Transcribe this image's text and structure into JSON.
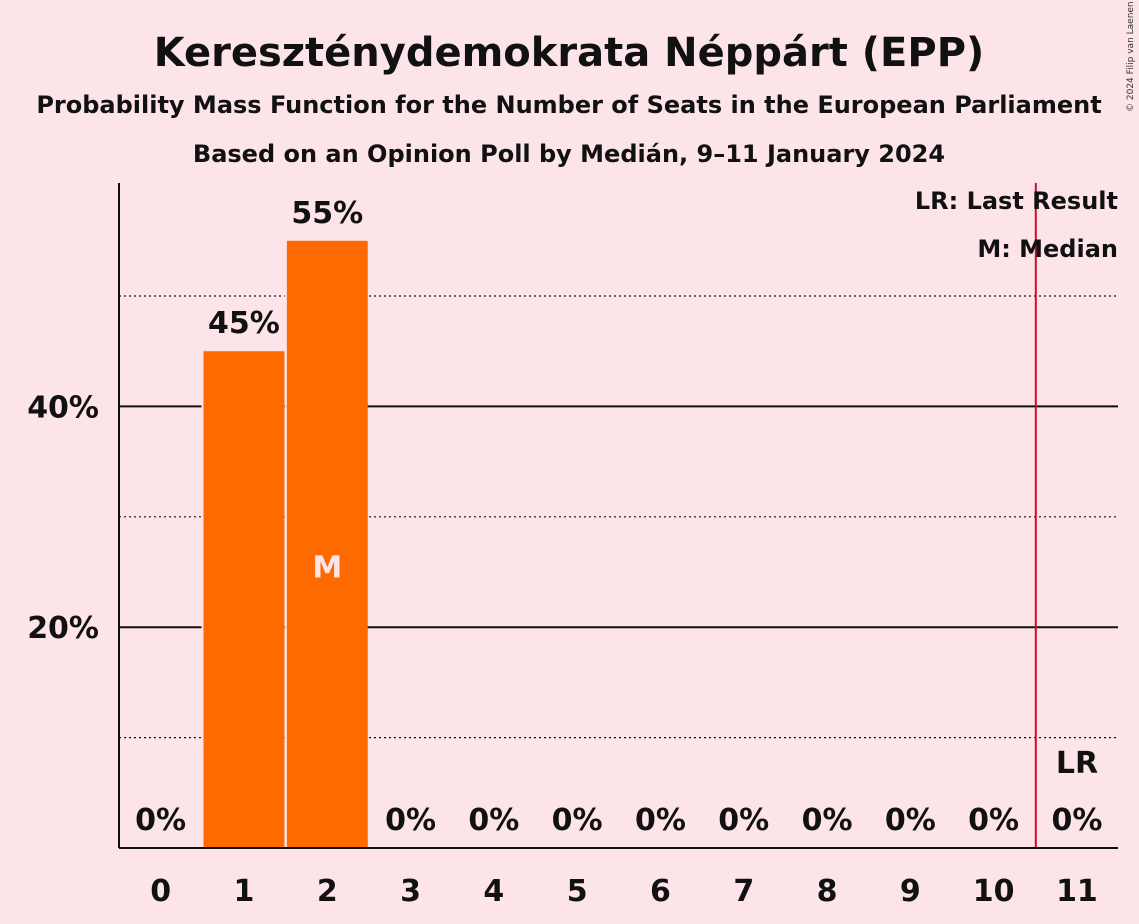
{
  "chart_data": {
    "type": "bar",
    "title": "Kereszténydemokrata Néppárt (EPP)",
    "subtitle": "Probability Mass Function for the Number of Seats in the European Parliament",
    "subtitle2": "Based on an Opinion Poll by Medián, 9–11 January 2024",
    "copyright": "© 2024 Filip van Laenen",
    "categories": [
      "0",
      "1",
      "2",
      "3",
      "4",
      "5",
      "6",
      "7",
      "8",
      "9",
      "10",
      "11"
    ],
    "values": [
      0,
      45,
      55,
      0,
      0,
      0,
      0,
      0,
      0,
      0,
      0,
      0
    ],
    "value_labels": [
      "0%",
      "45%",
      "55%",
      "0%",
      "0%",
      "0%",
      "0%",
      "0%",
      "0%",
      "0%",
      "0%",
      "0%"
    ],
    "ylim": [
      0,
      60
    ],
    "yticks": [
      {
        "value": 20,
        "label": "20%"
      },
      {
        "value": 40,
        "label": "40%"
      }
    ],
    "minor_gridlines": [
      10,
      30,
      50
    ],
    "median_seat": 2,
    "median_marker": "M",
    "last_result_seat": 11,
    "last_result_marker": "LR",
    "legend": [
      "LR: Last Result",
      "M: Median"
    ],
    "legend_position": "top-right",
    "colors": {
      "bar": "#ff6a00",
      "background": "#fce4e8",
      "last_result_line": "#c8102e",
      "axis": "#111111"
    }
  }
}
